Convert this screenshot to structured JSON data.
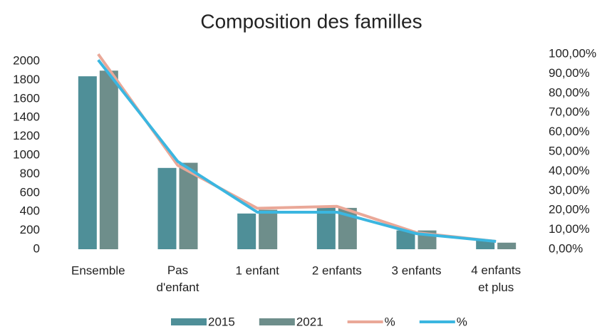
{
  "chart_data": {
    "type": "bar_line",
    "title": "Composition des familles",
    "categories": [
      "Ensemble",
      "Pas d'enfant",
      "1 enfant",
      "2 enfants",
      "3 enfants",
      "4 enfants et plus"
    ],
    "series": [
      {
        "name": "2015",
        "color": "#4f8f98",
        "values": [
          1840,
          865,
          380,
          450,
          200,
          100
        ]
      },
      {
        "name": "2021",
        "color": "#6e8e8b",
        "values": [
          1900,
          920,
          420,
          440,
          200,
          70
        ]
      },
      {
        "name": "%",
        "color": "#eaa898",
        "axis": "y2",
        "values": [
          100,
          43,
          21,
          22,
          8.5,
          4
        ]
      },
      {
        "name": "%",
        "color": "#3bb6e0",
        "axis": "y2",
        "values": [
          97,
          45,
          19,
          19,
          8,
          4
        ]
      }
    ],
    "ylim": [
      0,
      2000
    ],
    "yticks": [
      0,
      200,
      400,
      600,
      800,
      1000,
      1200,
      1400,
      1600,
      1800,
      2000
    ],
    "y2lim": [
      0,
      100
    ],
    "y2ticks": [
      {
        "value": 0,
        "label": "0,00%"
      },
      {
        "value": 10,
        "label": "10,00%"
      },
      {
        "value": 20,
        "label": "20,00%"
      },
      {
        "value": 30,
        "label": "30,00%"
      },
      {
        "value": 40,
        "label": "40,00%"
      },
      {
        "value": 50,
        "label": "50,00%"
      },
      {
        "value": 60,
        "label": "60,00%"
      },
      {
        "value": 70,
        "label": "70,00%"
      },
      {
        "value": 80,
        "label": "80,00%"
      },
      {
        "value": 90,
        "label": "90,00%"
      },
      {
        "value": 100,
        "label": "100,00%"
      }
    ],
    "grid": false,
    "legend": "bottom"
  }
}
